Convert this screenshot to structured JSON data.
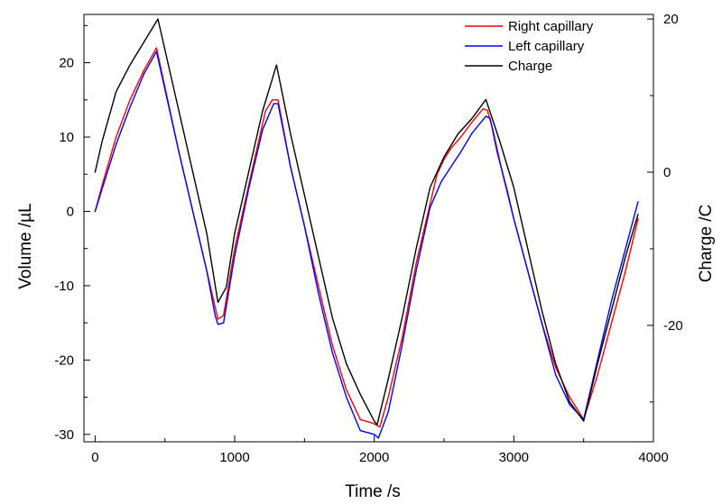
{
  "chart_data": {
    "type": "line",
    "xlabel": "Time /s",
    "ylabel": "Volume /µL",
    "y2label": "Charge /C",
    "xlim": [
      -80,
      4000
    ],
    "ylim": [
      -31,
      26.5
    ],
    "y2lim": [
      -35.2,
      20.6
    ],
    "x_ticks": [
      0,
      1000,
      2000,
      3000,
      4000
    ],
    "y_ticks": [
      -30,
      -20,
      -10,
      0,
      10,
      20
    ],
    "y2_ticks": [
      -20,
      0,
      20
    ],
    "x_tick_labels": [
      "0",
      "1000",
      "2000",
      "3000",
      "4000"
    ],
    "y_tick_labels": [
      "-30",
      "-20",
      "-10",
      "0",
      "10",
      "20"
    ],
    "y2_tick_labels": [
      "-20",
      "0",
      "20"
    ],
    "grid": false,
    "legend_position": "top-right",
    "series": [
      {
        "name": "Right capillary",
        "color": "#ff0000",
        "axis": "left",
        "points": [
          [
            0,
            0
          ],
          [
            50,
            3.5
          ],
          [
            150,
            10
          ],
          [
            250,
            15
          ],
          [
            350,
            19
          ],
          [
            440,
            22
          ],
          [
            600,
            8
          ],
          [
            800,
            -8
          ],
          [
            880,
            -14.5
          ],
          [
            920,
            -14
          ],
          [
            1000,
            -5
          ],
          [
            1100,
            3.5
          ],
          [
            1220,
            13.5
          ],
          [
            1270,
            15
          ],
          [
            1310,
            15
          ],
          [
            1400,
            6
          ],
          [
            1500,
            -2
          ],
          [
            1600,
            -10
          ],
          [
            1700,
            -18
          ],
          [
            1800,
            -24
          ],
          [
            1900,
            -28
          ],
          [
            1990,
            -28.5
          ],
          [
            2040,
            -29
          ],
          [
            2100,
            -25
          ],
          [
            2200,
            -17
          ],
          [
            2300,
            -7
          ],
          [
            2400,
            1
          ],
          [
            2450,
            5
          ],
          [
            2500,
            7
          ],
          [
            2550,
            8.5
          ],
          [
            2620,
            10
          ],
          [
            2700,
            12
          ],
          [
            2780,
            13.8
          ],
          [
            2810,
            13.6
          ],
          [
            2850,
            11
          ],
          [
            2920,
            5
          ],
          [
            3000,
            -1
          ],
          [
            3100,
            -8
          ],
          [
            3200,
            -15
          ],
          [
            3300,
            -21
          ],
          [
            3400,
            -25
          ],
          [
            3500,
            -28
          ],
          [
            3600,
            -22
          ],
          [
            3700,
            -15
          ],
          [
            3800,
            -8
          ],
          [
            3890,
            -1
          ]
        ]
      },
      {
        "name": "Left capillary",
        "color": "#0000ff",
        "axis": "left",
        "points": [
          [
            0,
            0
          ],
          [
            50,
            3
          ],
          [
            150,
            9
          ],
          [
            250,
            14
          ],
          [
            350,
            18.5
          ],
          [
            440,
            21.5
          ],
          [
            600,
            8
          ],
          [
            800,
            -8
          ],
          [
            860,
            -14
          ],
          [
            880,
            -15.2
          ],
          [
            920,
            -15
          ],
          [
            1000,
            -6
          ],
          [
            1100,
            3
          ],
          [
            1200,
            11
          ],
          [
            1280,
            14.5
          ],
          [
            1310,
            14.5
          ],
          [
            1400,
            6
          ],
          [
            1500,
            -2
          ],
          [
            1600,
            -11
          ],
          [
            1700,
            -19
          ],
          [
            1800,
            -25
          ],
          [
            1900,
            -29.5
          ],
          [
            2000,
            -30
          ],
          [
            2030,
            -30.5
          ],
          [
            2100,
            -27
          ],
          [
            2200,
            -18
          ],
          [
            2300,
            -8
          ],
          [
            2400,
            0.5
          ],
          [
            2480,
            4
          ],
          [
            2550,
            6
          ],
          [
            2620,
            8
          ],
          [
            2700,
            10.5
          ],
          [
            2800,
            12.8
          ],
          [
            2830,
            12.5
          ],
          [
            2880,
            8
          ],
          [
            2950,
            3
          ],
          [
            3000,
            -1
          ],
          [
            3100,
            -8
          ],
          [
            3200,
            -15
          ],
          [
            3300,
            -22
          ],
          [
            3400,
            -26
          ],
          [
            3500,
            -28
          ],
          [
            3600,
            -20
          ],
          [
            3700,
            -12
          ],
          [
            3800,
            -5
          ],
          [
            3890,
            1.3
          ]
        ]
      },
      {
        "name": "Charge",
        "color": "#000000",
        "axis": "right",
        "points": [
          [
            0,
            0
          ],
          [
            50,
            4
          ],
          [
            150,
            10.5
          ],
          [
            250,
            14
          ],
          [
            350,
            17
          ],
          [
            450,
            20
          ],
          [
            600,
            8
          ],
          [
            800,
            -8
          ],
          [
            880,
            -17
          ],
          [
            940,
            -15
          ],
          [
            1000,
            -8
          ],
          [
            1100,
            0
          ],
          [
            1200,
            8
          ],
          [
            1300,
            14
          ],
          [
            1400,
            5
          ],
          [
            1500,
            -3
          ],
          [
            1600,
            -11
          ],
          [
            1700,
            -19
          ],
          [
            1800,
            -25
          ],
          [
            1900,
            -29
          ],
          [
            2000,
            -32.5
          ],
          [
            2020,
            -33
          ],
          [
            2100,
            -27
          ],
          [
            2200,
            -19
          ],
          [
            2300,
            -10
          ],
          [
            2400,
            -2
          ],
          [
            2500,
            2
          ],
          [
            2600,
            5
          ],
          [
            2700,
            7
          ],
          [
            2800,
            9.5
          ],
          [
            2900,
            4
          ],
          [
            3000,
            -2
          ],
          [
            3100,
            -10
          ],
          [
            3200,
            -18
          ],
          [
            3300,
            -25
          ],
          [
            3400,
            -30
          ],
          [
            3500,
            -32.5
          ],
          [
            3600,
            -25
          ],
          [
            3700,
            -18
          ],
          [
            3800,
            -11
          ],
          [
            3890,
            -5.5
          ]
        ]
      }
    ]
  }
}
